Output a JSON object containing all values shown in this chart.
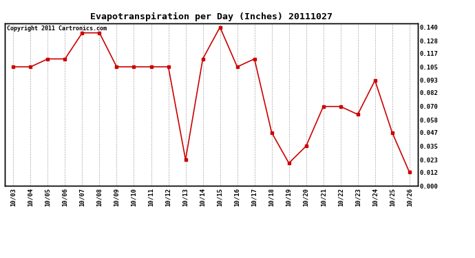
{
  "title": "Evapotranspiration per Day (Inches) 20111027",
  "copyright_text": "Copyright 2011 Cartronics.com",
  "x_labels": [
    "10/03",
    "10/04",
    "10/05",
    "10/06",
    "10/07",
    "10/08",
    "10/09",
    "10/10",
    "10/11",
    "10/12",
    "10/13",
    "10/14",
    "10/15",
    "10/16",
    "10/17",
    "10/18",
    "10/19",
    "10/20",
    "10/21",
    "10/22",
    "10/23",
    "10/24",
    "10/25",
    "10/26"
  ],
  "y_values": [
    0.105,
    0.105,
    0.112,
    0.112,
    0.135,
    0.135,
    0.105,
    0.105,
    0.105,
    0.105,
    0.023,
    0.112,
    0.14,
    0.105,
    0.112,
    0.047,
    0.02,
    0.035,
    0.07,
    0.07,
    0.063,
    0.093,
    0.047,
    0.012
  ],
  "y_ticks": [
    0.0,
    0.012,
    0.023,
    0.035,
    0.047,
    0.058,
    0.07,
    0.082,
    0.093,
    0.105,
    0.117,
    0.128,
    0.14
  ],
  "ylim": [
    0.0,
    0.1435
  ],
  "line_color": "#cc0000",
  "marker": "s",
  "marker_size": 2.5,
  "line_width": 1.2,
  "background_color": "#ffffff",
  "grid_color": "#aaaaaa",
  "title_fontsize": 9.5,
  "tick_fontsize": 6.5,
  "copyright_fontsize": 6.0
}
